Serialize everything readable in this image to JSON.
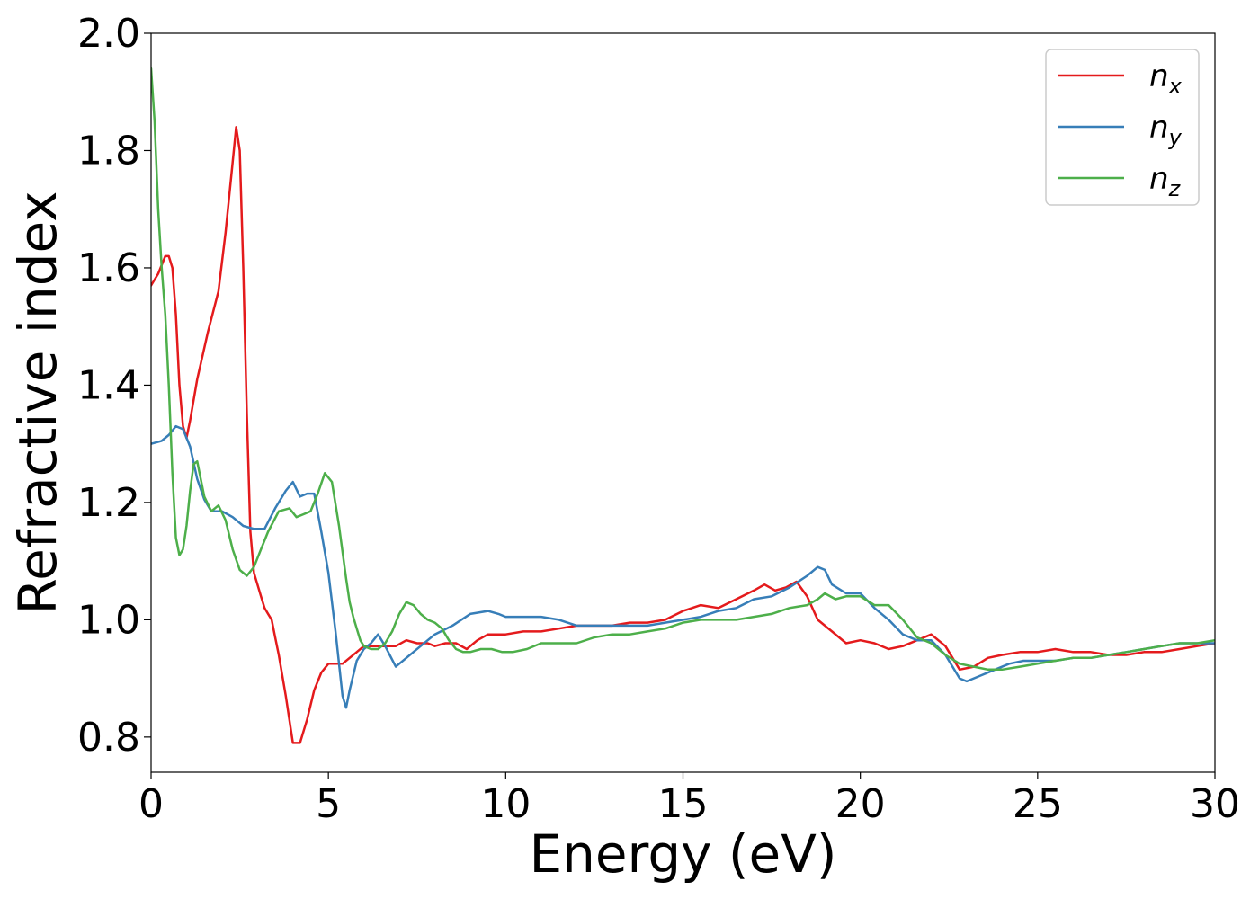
{
  "chart_data": {
    "type": "line",
    "title": "",
    "xlabel": "Energy (eV)",
    "ylabel": "Refractive index",
    "xlim": [
      0,
      30
    ],
    "ylim": [
      0.74,
      2.0
    ],
    "xticks": [
      0,
      5,
      10,
      15,
      20,
      25,
      30
    ],
    "xtick_labels": [
      "0",
      "5",
      "10",
      "15",
      "20",
      "25",
      "30"
    ],
    "yticks": [
      0.8,
      1.0,
      1.2,
      1.4,
      1.6,
      1.8,
      2.0
    ],
    "ytick_labels": [
      "0.8",
      "1.0",
      "1.2",
      "1.4",
      "1.6",
      "1.8",
      "2.0"
    ],
    "grid": false,
    "legend_position": "top-right",
    "series": [
      {
        "name": "n_x",
        "label_base": "n",
        "label_sub": "x",
        "color": "#e41a1c",
        "x": [
          0,
          0.2,
          0.4,
          0.5,
          0.6,
          0.7,
          0.8,
          0.9,
          1.0,
          1.1,
          1.3,
          1.6,
          1.9,
          2.1,
          2.3,
          2.4,
          2.5,
          2.6,
          2.7,
          2.8,
          2.9,
          3.0,
          3.1,
          3.2,
          3.3,
          3.4,
          3.5,
          3.6,
          3.8,
          4.0,
          4.2,
          4.4,
          4.6,
          4.8,
          5.0,
          5.2,
          5.4,
          5.6,
          5.8,
          6.0,
          6.3,
          6.6,
          6.9,
          7.2,
          7.5,
          7.8,
          8.0,
          8.3,
          8.6,
          8.9,
          9.2,
          9.5,
          9.8,
          10.0,
          10.5,
          11.0,
          11.5,
          12.0,
          12.5,
          13.0,
          13.5,
          14.0,
          14.5,
          15.0,
          15.5,
          16.0,
          16.5,
          17.0,
          17.3,
          17.6,
          17.9,
          18.2,
          18.5,
          18.8,
          19.2,
          19.6,
          20.0,
          20.4,
          20.8,
          21.2,
          21.6,
          22.0,
          22.4,
          22.8,
          23.2,
          23.6,
          24.0,
          24.5,
          25.0,
          25.5,
          26.0,
          26.5,
          27.0,
          27.5,
          28.0,
          28.5,
          29.0,
          29.5,
          30.0
        ],
        "values": [
          1.57,
          1.59,
          1.62,
          1.62,
          1.6,
          1.52,
          1.4,
          1.33,
          1.31,
          1.34,
          1.41,
          1.49,
          1.56,
          1.66,
          1.78,
          1.84,
          1.8,
          1.6,
          1.35,
          1.15,
          1.08,
          1.06,
          1.04,
          1.02,
          1.01,
          1.0,
          0.97,
          0.94,
          0.87,
          0.79,
          0.79,
          0.83,
          0.88,
          0.91,
          0.925,
          0.925,
          0.925,
          0.935,
          0.945,
          0.955,
          0.955,
          0.955,
          0.955,
          0.965,
          0.96,
          0.96,
          0.955,
          0.96,
          0.96,
          0.95,
          0.965,
          0.975,
          0.975,
          0.975,
          0.98,
          0.98,
          0.985,
          0.99,
          0.99,
          0.99,
          0.995,
          0.995,
          1.0,
          1.015,
          1.025,
          1.02,
          1.035,
          1.05,
          1.06,
          1.05,
          1.055,
          1.065,
          1.04,
          1.0,
          0.98,
          0.96,
          0.965,
          0.96,
          0.95,
          0.955,
          0.965,
          0.975,
          0.955,
          0.915,
          0.92,
          0.935,
          0.94,
          0.945,
          0.945,
          0.95,
          0.945,
          0.945,
          0.94,
          0.94,
          0.945,
          0.945,
          0.95,
          0.955,
          0.96
        ]
      },
      {
        "name": "n_y",
        "label_base": "n",
        "label_sub": "y",
        "color": "#377eb8",
        "x": [
          0,
          0.3,
          0.5,
          0.7,
          0.9,
          1.1,
          1.3,
          1.5,
          1.7,
          2.0,
          2.3,
          2.6,
          2.9,
          3.2,
          3.5,
          3.8,
          4.0,
          4.2,
          4.4,
          4.6,
          4.8,
          5.0,
          5.2,
          5.4,
          5.5,
          5.6,
          5.8,
          6.0,
          6.2,
          6.4,
          6.6,
          6.9,
          7.2,
          7.6,
          8.0,
          8.5,
          9.0,
          9.5,
          9.8,
          10.0,
          10.5,
          11.0,
          11.5,
          12.0,
          12.5,
          13.0,
          13.5,
          14.0,
          14.5,
          15.0,
          15.5,
          16.0,
          16.5,
          17.0,
          17.5,
          18.0,
          18.5,
          18.8,
          19.0,
          19.2,
          19.6,
          20.0,
          20.4,
          20.8,
          21.2,
          21.6,
          22.0,
          22.4,
          22.8,
          23.0,
          23.4,
          23.8,
          24.2,
          24.6,
          25.0,
          25.5,
          26.0,
          26.5,
          27.0,
          27.5,
          28.0,
          28.5,
          29.0,
          29.5,
          30.0
        ],
        "values": [
          1.3,
          1.305,
          1.315,
          1.33,
          1.325,
          1.295,
          1.24,
          1.205,
          1.185,
          1.185,
          1.175,
          1.16,
          1.155,
          1.155,
          1.19,
          1.22,
          1.235,
          1.21,
          1.215,
          1.215,
          1.15,
          1.08,
          0.98,
          0.87,
          0.85,
          0.88,
          0.93,
          0.95,
          0.96,
          0.975,
          0.955,
          0.92,
          0.935,
          0.955,
          0.975,
          0.99,
          1.01,
          1.015,
          1.01,
          1.005,
          1.005,
          1.005,
          1.0,
          0.99,
          0.99,
          0.99,
          0.99,
          0.99,
          0.995,
          1.0,
          1.005,
          1.015,
          1.02,
          1.035,
          1.04,
          1.055,
          1.075,
          1.09,
          1.085,
          1.06,
          1.045,
          1.045,
          1.02,
          1.0,
          0.975,
          0.965,
          0.965,
          0.94,
          0.9,
          0.895,
          0.905,
          0.915,
          0.925,
          0.93,
          0.93,
          0.93,
          0.935,
          0.935,
          0.94,
          0.945,
          0.95,
          0.955,
          0.96,
          0.96,
          0.96
        ]
      },
      {
        "name": "n_z",
        "label_base": "n",
        "label_sub": "z",
        "color": "#4daf4a",
        "x": [
          0,
          0.1,
          0.2,
          0.3,
          0.4,
          0.5,
          0.6,
          0.7,
          0.8,
          0.9,
          1.0,
          1.1,
          1.2,
          1.3,
          1.4,
          1.5,
          1.7,
          1.9,
          2.1,
          2.3,
          2.5,
          2.7,
          2.9,
          3.1,
          3.3,
          3.6,
          3.9,
          4.1,
          4.3,
          4.5,
          4.7,
          4.9,
          5.1,
          5.3,
          5.5,
          5.6,
          5.7,
          5.8,
          5.9,
          6.0,
          6.2,
          6.4,
          6.6,
          6.8,
          7.0,
          7.2,
          7.4,
          7.6,
          7.8,
          8.0,
          8.2,
          8.4,
          8.6,
          8.8,
          9.0,
          9.3,
          9.6,
          9.9,
          10.2,
          10.6,
          11.0,
          11.5,
          12.0,
          12.5,
          13.0,
          13.5,
          14.0,
          14.5,
          15.0,
          15.5,
          16.0,
          16.5,
          17.0,
          17.5,
          18.0,
          18.5,
          18.8,
          19.0,
          19.3,
          19.6,
          20.0,
          20.4,
          20.8,
          21.2,
          21.6,
          22.0,
          22.4,
          22.8,
          23.2,
          23.6,
          24.0,
          24.5,
          25.0,
          25.5,
          26.0,
          26.5,
          27.0,
          27.5,
          28.0,
          28.5,
          29.0,
          29.5,
          30.0
        ],
        "values": [
          1.94,
          1.85,
          1.7,
          1.6,
          1.52,
          1.4,
          1.25,
          1.14,
          1.11,
          1.12,
          1.16,
          1.22,
          1.265,
          1.27,
          1.24,
          1.21,
          1.185,
          1.195,
          1.17,
          1.12,
          1.085,
          1.075,
          1.09,
          1.12,
          1.15,
          1.185,
          1.19,
          1.175,
          1.18,
          1.185,
          1.215,
          1.25,
          1.235,
          1.16,
          1.07,
          1.03,
          1.005,
          0.985,
          0.965,
          0.955,
          0.95,
          0.95,
          0.96,
          0.98,
          1.01,
          1.03,
          1.025,
          1.01,
          1.0,
          0.995,
          0.985,
          0.965,
          0.95,
          0.945,
          0.945,
          0.95,
          0.95,
          0.945,
          0.945,
          0.95,
          0.96,
          0.96,
          0.96,
          0.97,
          0.975,
          0.975,
          0.98,
          0.985,
          0.995,
          1.0,
          1.0,
          1.0,
          1.005,
          1.01,
          1.02,
          1.025,
          1.035,
          1.045,
          1.035,
          1.04,
          1.04,
          1.025,
          1.025,
          1.0,
          0.97,
          0.96,
          0.94,
          0.925,
          0.92,
          0.915,
          0.915,
          0.92,
          0.925,
          0.93,
          0.935,
          0.935,
          0.94,
          0.945,
          0.95,
          0.955,
          0.96,
          0.96,
          0.965
        ]
      }
    ]
  }
}
